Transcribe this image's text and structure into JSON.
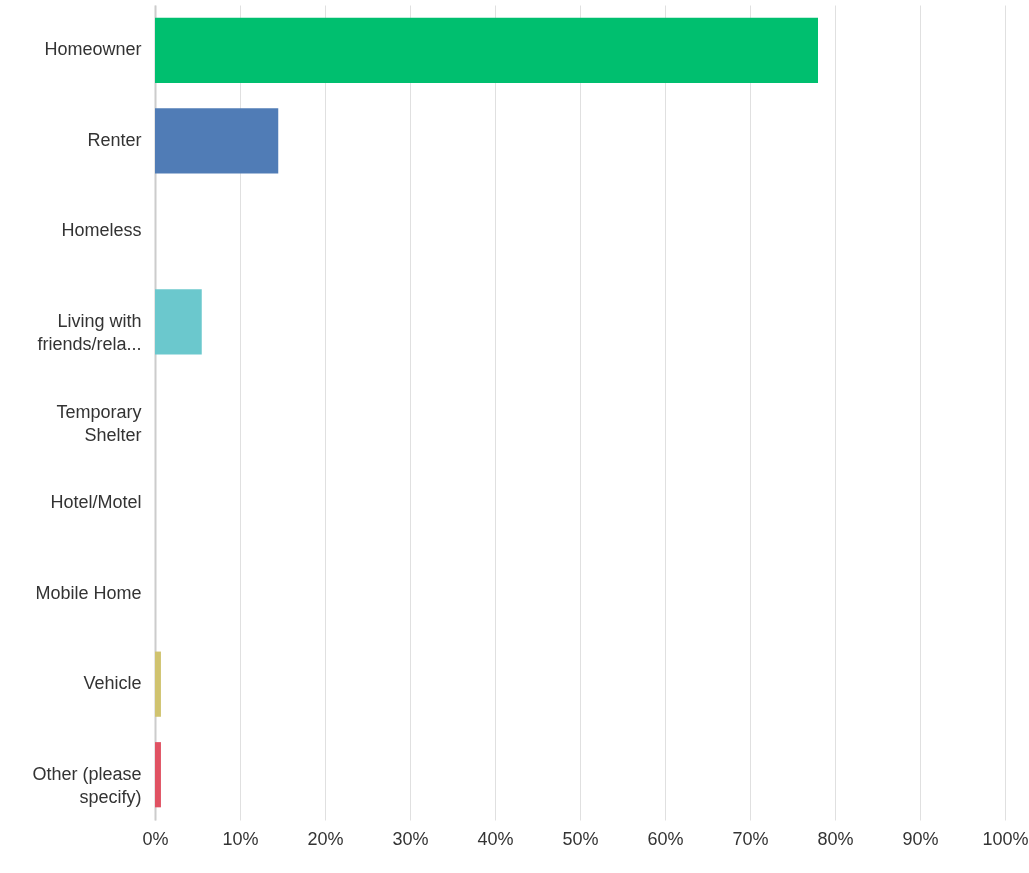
{
  "chart_data": {
    "type": "bar",
    "orientation": "horizontal",
    "categories": [
      "Homeowner",
      "Renter",
      "Homeless",
      "Living with friends/rela...",
      "Temporary Shelter",
      "Hotel/Motel",
      "Mobile Home",
      "Vehicle",
      "Other (please specify)"
    ],
    "values": [
      78,
      14.5,
      0,
      5.5,
      0,
      0,
      0,
      0.7,
      0.7
    ],
    "colors": [
      "#00bf6f",
      "#507cb6",
      "#f9be00",
      "#6bc8cd",
      "#ff8b4f",
      "#7f7ce0",
      "#00a2c7",
      "#d0c36f",
      "#e05263"
    ],
    "xlim": [
      0,
      100
    ],
    "xticks": [
      {
        "value": 0,
        "label": "0%"
      },
      {
        "value": 10,
        "label": "10%"
      },
      {
        "value": 20,
        "label": "20%"
      },
      {
        "value": 30,
        "label": "30%"
      },
      {
        "value": 40,
        "label": "40%"
      },
      {
        "value": 50,
        "label": "50%"
      },
      {
        "value": 60,
        "label": "60%"
      },
      {
        "value": 70,
        "label": "70%"
      },
      {
        "value": 80,
        "label": "80%"
      },
      {
        "value": 90,
        "label": "90%"
      },
      {
        "value": 100,
        "label": "100%"
      }
    ],
    "grid": "x"
  }
}
